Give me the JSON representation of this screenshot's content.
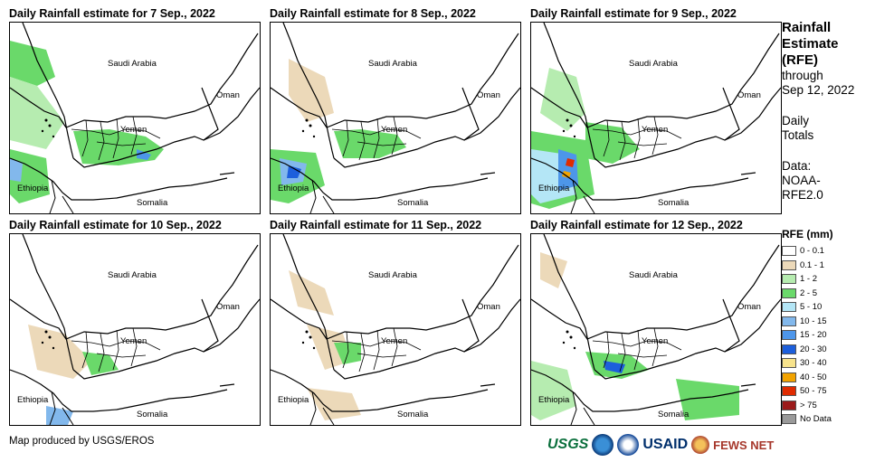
{
  "panels": [
    {
      "title": "Daily Rainfall estimate for 7 Sep., 2022"
    },
    {
      "title": "Daily Rainfall estimate for 8 Sep., 2022"
    },
    {
      "title": "Daily Rainfall estimate for 9 Sep., 2022"
    },
    {
      "title": "Daily Rainfall estimate for 10 Sep., 2022"
    },
    {
      "title": "Daily Rainfall estimate for 11 Sep., 2022"
    },
    {
      "title": "Daily Rainfall estimate for 12 Sep., 2022"
    }
  ],
  "countries": {
    "saudi": "Saudi Arabia",
    "oman": "Oman",
    "yemen": "Yemen",
    "ethiopia": "Ethiopia",
    "somalia": "Somalia"
  },
  "side": {
    "title_line1": "Rainfall",
    "title_line2": "Estimate",
    "title_line3": "(RFE)",
    "through": "through",
    "date": "Sep 12, 2022",
    "daily": "Daily",
    "totals": "Totals",
    "data_label": "Data:",
    "source1": "NOAA-",
    "source2": "RFE2.0"
  },
  "legend": {
    "title": "RFE (mm)",
    "items": [
      {
        "label": "0 - 0.1",
        "color": "#ffffff"
      },
      {
        "label": "0.1 - 1",
        "color": "#ecd9b9"
      },
      {
        "label": "1 - 2",
        "color": "#b6ecb0"
      },
      {
        "label": "2 - 5",
        "color": "#6ad96a"
      },
      {
        "label": "5 - 10",
        "color": "#b4e6f6"
      },
      {
        "label": "10 - 15",
        "color": "#82b8ec"
      },
      {
        "label": "15 - 20",
        "color": "#4d96ea"
      },
      {
        "label": "20 - 30",
        "color": "#1d5fdc"
      },
      {
        "label": "30 - 40",
        "color": "#f7e38c"
      },
      {
        "label": "40 - 50",
        "color": "#f2a300"
      },
      {
        "label": "50 - 75",
        "color": "#e02b00"
      },
      {
        "label": "> 75",
        "color": "#9b1b1b"
      },
      {
        "label": "No Data",
        "color": "#9a9a9a"
      }
    ]
  },
  "credit": "Map produced by USGS/EROS",
  "logos": {
    "usgs": "USGS",
    "usaid": "USAID",
    "fews": "FEWS NET"
  }
}
